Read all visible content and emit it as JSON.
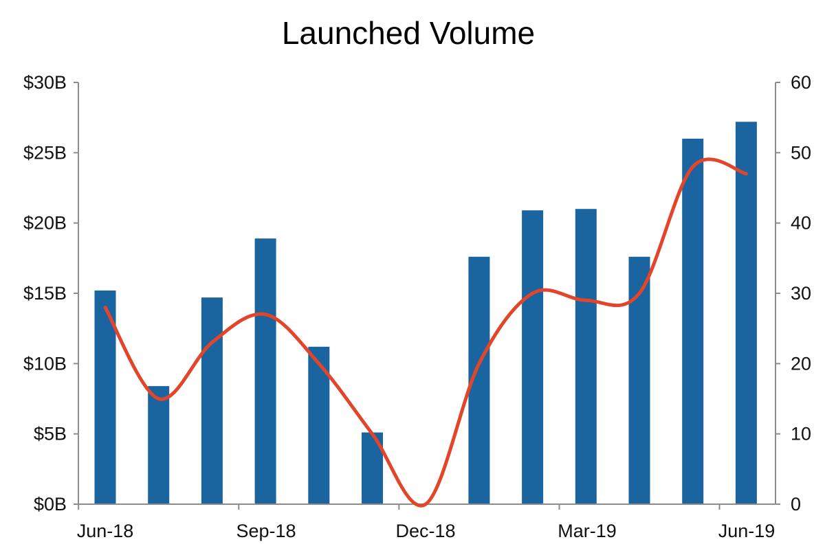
{
  "chart_data": {
    "type": "bar+line",
    "title": "Launched Volume",
    "x_tick_labels": [
      "Jun-18",
      "Sep-18",
      "Dec-18",
      "Mar-19",
      "Jun-19"
    ],
    "left_axis": {
      "ylim": [
        0,
        30
      ],
      "ticks": [
        0,
        5,
        10,
        15,
        20,
        25,
        30
      ],
      "tick_labels": [
        "$0B",
        "$5B",
        "$10B",
        "$15B",
        "$20B",
        "$25B",
        "$30B"
      ]
    },
    "right_axis": {
      "ylim": [
        0,
        60
      ],
      "ticks": [
        0,
        10,
        20,
        30,
        40,
        50,
        60
      ],
      "tick_labels": [
        "0",
        "10",
        "20",
        "30",
        "40",
        "50",
        "60"
      ]
    },
    "categories": [
      "Jun-18",
      "Jul-18",
      "Aug-18",
      "Sep-18",
      "Oct-18",
      "Nov-18",
      "Dec-18",
      "Jan-19",
      "Feb-19",
      "Mar-19",
      "Apr-19",
      "May-19",
      "Jun-19"
    ],
    "series": [
      {
        "kind": "bar",
        "axis": "left",
        "color": "#1a65a0",
        "values": [
          15.2,
          8.4,
          14.7,
          18.9,
          11.2,
          5.1,
          0,
          17.6,
          20.9,
          21.0,
          17.6,
          26.0,
          27.2
        ]
      },
      {
        "kind": "line",
        "axis": "right",
        "color": "#e2452a",
        "smooth": true,
        "values": [
          28,
          15,
          23,
          27,
          20,
          10,
          0,
          20,
          30,
          29,
          30,
          48,
          47
        ]
      }
    ],
    "grid": false
  }
}
